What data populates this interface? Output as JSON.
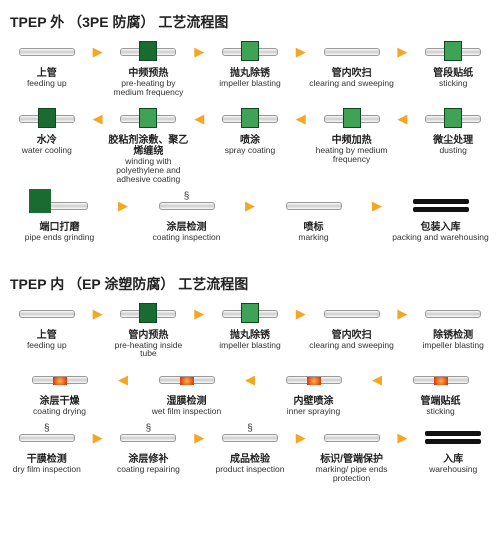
{
  "colors": {
    "arrow": "#f5a623",
    "green": "#1a6b32",
    "greenLight": "#3fa257",
    "red": "#d62a00",
    "text": "#222222"
  },
  "d1": {
    "title": "TPEP 外  （3PE 防腐） 工艺流程图",
    "rows": [
      {
        "dir": "right",
        "steps": [
          {
            "zh": "上管",
            "en": "feeding up",
            "icon": "pipe"
          },
          {
            "zh": "中频预热",
            "en": "pre-heating by medium frequency",
            "icon": "pipe-green"
          },
          {
            "zh": "抛丸除锈",
            "en": "impeller blasting",
            "icon": "pipe-green-light"
          },
          {
            "zh": "管内吹扫",
            "en": "clearing and sweeping",
            "icon": "pipe"
          },
          {
            "zh": "管段贴纸",
            "en": "sticking",
            "icon": "pipe-green-light"
          }
        ]
      },
      {
        "dir": "left",
        "steps": [
          {
            "zh": "水冷",
            "en": "water cooling",
            "icon": "pipe-green"
          },
          {
            "zh": "胶粘剂涂敷、聚乙烯缠绕",
            "en": "winding with polyethylene and adhesive coating",
            "icon": "pipe-green-light"
          },
          {
            "zh": "喷涂",
            "en": "spray coating",
            "icon": "pipe-green-light"
          },
          {
            "zh": "中频加热",
            "en": "heating by medium frequency",
            "icon": "pipe-green-light"
          },
          {
            "zh": "微尘处理",
            "en": "dusting",
            "icon": "pipe-green-light"
          }
        ]
      },
      {
        "dir": "right",
        "steps": [
          {
            "zh": "端口打磨",
            "en": "pipe ends grinding",
            "icon": "pipe-stand"
          },
          {
            "zh": "涂层检测",
            "en": "coating inspection",
            "icon": "pipe-spring"
          },
          {
            "zh": "喷标",
            "en": "marking",
            "icon": "pipe"
          },
          {
            "zh": "包装入库",
            "en": "packing and warehousing",
            "icon": "black-pipes"
          }
        ]
      }
    ]
  },
  "d2": {
    "title": "TPEP 内  （EP 涂塑防腐） 工艺流程图",
    "rows": [
      {
        "dir": "right",
        "steps": [
          {
            "zh": "上管",
            "en": "feeding up",
            "icon": "pipe"
          },
          {
            "zh": "管内预热",
            "en": "pre-heating inside tube",
            "icon": "pipe-green"
          },
          {
            "zh": "抛丸除锈",
            "en": "impeller blasting",
            "icon": "pipe-green-light"
          },
          {
            "zh": "管内吹扫",
            "en": "clearing and sweeping",
            "icon": "pipe"
          },
          {
            "zh": "除锈检测",
            "en": "impeller blasting",
            "icon": "pipe"
          }
        ]
      },
      {
        "dir": "left",
        "steps": [
          {
            "zh": "涂层干燥",
            "en": "coating drying",
            "icon": "pipe-red"
          },
          {
            "zh": "湿膜检测",
            "en": "wet film inspection",
            "icon": "pipe-red"
          },
          {
            "zh": "内壁喷涂",
            "en": "inner spraying",
            "icon": "pipe-red"
          },
          {
            "zh": "管端贴纸",
            "en": "sticking",
            "icon": "pipe-red"
          }
        ]
      },
      {
        "dir": "right",
        "steps": [
          {
            "zh": "干膜检测",
            "en": "dry film inspection",
            "icon": "pipe-spring"
          },
          {
            "zh": "涂层修补",
            "en": "coating repairing",
            "icon": "pipe-spring"
          },
          {
            "zh": "成品检验",
            "en": "product inspection",
            "icon": "pipe-spring"
          },
          {
            "zh": "标识/管端保护",
            "en": "marking/ pipe ends protection",
            "icon": "pipe"
          },
          {
            "zh": "入库",
            "en": "warehousing",
            "icon": "black-pipes"
          }
        ]
      }
    ]
  }
}
